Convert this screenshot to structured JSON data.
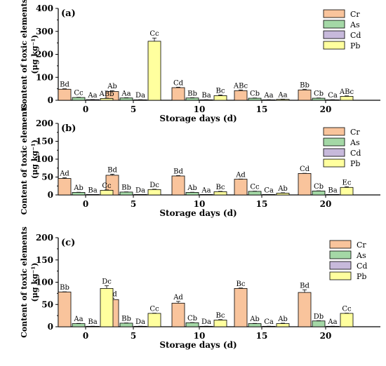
{
  "colors": {
    "Cr": "#f9c49c",
    "As": "#a4d8a6",
    "Cd": "#c7b9db",
    "Pb": "#ffff9e"
  },
  "chart_data": [
    {
      "type": "bar",
      "panel": "(a)",
      "categories": [
        "0",
        "5",
        "10",
        "15",
        "20"
      ],
      "xlabel": "Storage days (d)",
      "ylabel": "Content of toxic elements",
      "yunit": "(μg kg⁻¹)",
      "ylim": [
        0,
        400
      ],
      "yticks": [
        0,
        100,
        200,
        300,
        400
      ],
      "legend_position": "top-right",
      "series": [
        {
          "name": "Cr",
          "values": [
            48,
            38,
            55,
            42,
            45
          ],
          "errors": [
            2,
            4,
            2,
            3,
            3
          ],
          "labels": [
            "Bd",
            "Ab",
            "Cd",
            "ABc",
            "Bb"
          ]
        },
        {
          "name": "As",
          "values": [
            12,
            10,
            10,
            9,
            9
          ],
          "errors": [
            1,
            1,
            1,
            1,
            1
          ],
          "labels": [
            "Cc",
            "Aa",
            "Bb",
            "Cb",
            "Cb"
          ]
        },
        {
          "name": "Cd",
          "values": [
            3,
            2,
            2,
            2,
            2
          ],
          "errors": [
            0.5,
            0.5,
            0.5,
            0.5,
            0.5
          ],
          "labels": [
            "Aa",
            "Da",
            "Ba",
            "Aa",
            "Ca"
          ]
        },
        {
          "name": "Pb",
          "values": [
            8,
            257,
            20,
            4,
            17
          ],
          "errors": [
            1,
            14,
            3,
            1,
            2
          ],
          "labels": [
            "ABb",
            "Cc",
            "Bc",
            "Aa",
            "ABc"
          ]
        }
      ]
    },
    {
      "type": "bar",
      "panel": "(b)",
      "categories": [
        "0",
        "5",
        "10",
        "15",
        "20"
      ],
      "xlabel": "Storage days (d)",
      "ylabel": "Content of toxic elements",
      "yunit": "(μg kg⁻¹)",
      "ylim": [
        0,
        200
      ],
      "yticks": [
        0,
        50,
        100,
        150,
        200
      ],
      "legend_position": "top-right",
      "series": [
        {
          "name": "Cr",
          "values": [
            46,
            55,
            53,
            44,
            60
          ],
          "errors": [
            2,
            3,
            1,
            0.5,
            0.5
          ],
          "labels": [
            "Ad",
            "Bd",
            "Bd",
            "Ad",
            "Cd"
          ]
        },
        {
          "name": "As",
          "values": [
            7,
            8,
            7,
            10,
            11
          ],
          "errors": [
            0.5,
            0.5,
            0.5,
            0.5,
            0.5
          ],
          "labels": [
            "Ab",
            "Bb",
            "Ab",
            "Cc",
            "Cb"
          ]
        },
        {
          "name": "Cd",
          "values": [
            1,
            1,
            1,
            1,
            1
          ],
          "errors": [
            0.2,
            0.2,
            0.2,
            0.2,
            0.2
          ],
          "labels": [
            "Ba",
            "Da",
            "Aa",
            "Ca",
            "Ba"
          ]
        },
        {
          "name": "Pb",
          "values": [
            13,
            15,
            9,
            5,
            21
          ],
          "errors": [
            1,
            1,
            1,
            1,
            2
          ],
          "labels": [
            "Cc",
            "Dc",
            "Bc",
            "Ab",
            "Ec"
          ]
        }
      ]
    },
    {
      "type": "bar",
      "panel": "(c)",
      "categories": [
        "0",
        "5",
        "10",
        "15",
        "20"
      ],
      "xlabel": "Storage days (d)",
      "ylabel": "Content of toxic elements",
      "yunit": "(μg kg⁻¹)",
      "ylim": [
        0,
        200
      ],
      "yticks": [
        0,
        50,
        100,
        150,
        200
      ],
      "legend_position": "top-right",
      "series": [
        {
          "name": "Cr",
          "values": [
            78,
            61,
            53,
            86,
            77
          ],
          "errors": [
            0.5,
            3,
            4,
            1,
            6
          ],
          "labels": [
            "Bb",
            "Ad",
            "Ad",
            "Bc",
            "Bd"
          ]
        },
        {
          "name": "As",
          "values": [
            7,
            8,
            9,
            7,
            13
          ],
          "errors": [
            0.5,
            0.5,
            0.5,
            0.5,
            0.5
          ],
          "labels": [
            "Aa",
            "Bb",
            "Cb",
            "Ab",
            "Db"
          ]
        },
        {
          "name": "Cd",
          "values": [
            1,
            1,
            1,
            1,
            1
          ],
          "errors": [
            0.2,
            0.2,
            0.2,
            0.2,
            0.2
          ],
          "labels": [
            "Ba",
            "Da",
            "Da",
            "Ca",
            "Aa"
          ]
        },
        {
          "name": "Pb",
          "values": [
            86,
            30,
            15,
            7,
            30
          ],
          "errors": [
            6,
            0.5,
            1,
            1,
            0.5
          ],
          "labels": [
            "Dc",
            "Cc",
            "Bc",
            "Ab",
            "Cc"
          ]
        }
      ]
    }
  ]
}
